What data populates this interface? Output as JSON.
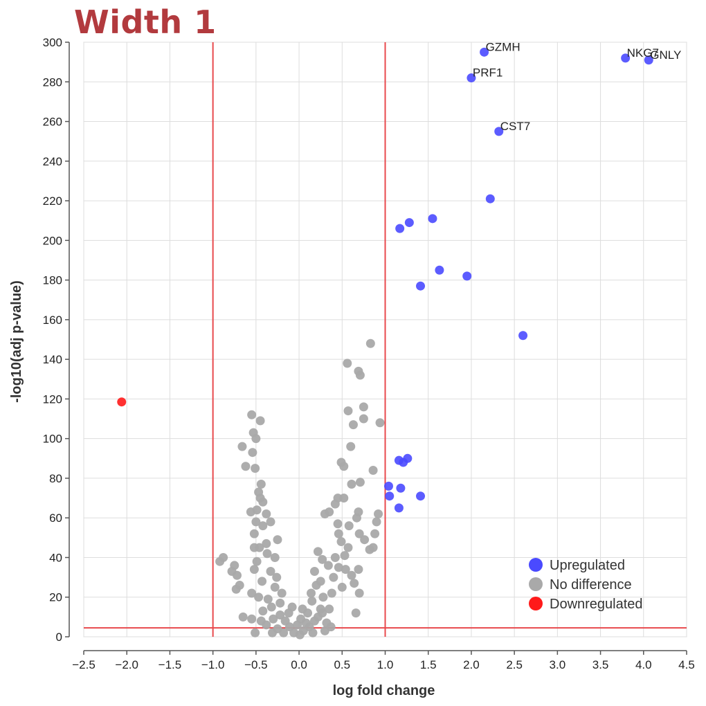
{
  "title": "Width 1",
  "colors": {
    "upregulated": "#4a4aff",
    "no_difference": "#a9a9a9",
    "downregulated": "#ff1a1a",
    "threshold": "#e8484c",
    "grid": "#dddddd",
    "axis": "#555555"
  },
  "chart_data": {
    "type": "scatter",
    "xlabel": "log fold change",
    "ylabel": "-log10(adj p-value)",
    "xlim": [
      -2.5,
      4.5
    ],
    "ylim": [
      0,
      300
    ],
    "x_ticks": [
      -2.5,
      -2.0,
      -1.5,
      -1.0,
      -0.5,
      0.0,
      0.5,
      1.0,
      1.5,
      2.0,
      2.5,
      3.0,
      3.5,
      4.0,
      4.5
    ],
    "x_tick_labels": [
      "−2.5",
      "−2.0",
      "−1.5",
      "−1.0",
      "−0.5",
      "0.0",
      "0.5",
      "1.0",
      "1.5",
      "2.0",
      "2.5",
      "3.0",
      "3.5",
      "4.0",
      "4.5"
    ],
    "y_ticks": [
      0,
      20,
      40,
      60,
      80,
      100,
      120,
      140,
      160,
      180,
      200,
      220,
      240,
      260,
      280,
      300
    ],
    "y_tick_labels": [
      "0",
      "20",
      "40",
      "60",
      "80",
      "100",
      "120",
      "140",
      "160",
      "180",
      "200",
      "220",
      "240",
      "260",
      "280",
      "300"
    ],
    "grid": true,
    "legend_position": "bottom-right",
    "thresholds": {
      "x": [
        -1.0,
        1.0
      ],
      "y": [
        4.5
      ]
    },
    "legend": [
      {
        "label": "Upregulated",
        "category": "upregulated"
      },
      {
        "label": "No difference",
        "category": "no_difference"
      },
      {
        "label": "Downregulated",
        "category": "downregulated"
      }
    ],
    "series": [
      {
        "category": "upregulated",
        "points": [
          {
            "x": 2.15,
            "y": 295,
            "label": "GZMH"
          },
          {
            "x": 3.79,
            "y": 292,
            "label": "NKG7"
          },
          {
            "x": 4.06,
            "y": 291,
            "label": "GNLY"
          },
          {
            "x": 2.0,
            "y": 282,
            "label": "PRF1"
          },
          {
            "x": 2.32,
            "y": 255,
            "label": "CST7"
          },
          {
            "x": 2.22,
            "y": 221
          },
          {
            "x": 1.55,
            "y": 211
          },
          {
            "x": 1.28,
            "y": 209
          },
          {
            "x": 1.17,
            "y": 206
          },
          {
            "x": 1.63,
            "y": 185
          },
          {
            "x": 1.95,
            "y": 182
          },
          {
            "x": 1.41,
            "y": 177
          },
          {
            "x": 2.6,
            "y": 152
          },
          {
            "x": 1.26,
            "y": 90
          },
          {
            "x": 1.16,
            "y": 89
          },
          {
            "x": 1.21,
            "y": 88
          },
          {
            "x": 1.04,
            "y": 76
          },
          {
            "x": 1.18,
            "y": 75
          },
          {
            "x": 1.05,
            "y": 71
          },
          {
            "x": 1.41,
            "y": 71
          },
          {
            "x": 1.16,
            "y": 65
          }
        ]
      },
      {
        "category": "downregulated",
        "points": [
          {
            "x": -2.06,
            "y": 118.5
          }
        ]
      },
      {
        "category": "no_difference",
        "points": [
          {
            "x": 0.83,
            "y": 148
          },
          {
            "x": 0.56,
            "y": 138
          },
          {
            "x": 0.69,
            "y": 134
          },
          {
            "x": 0.71,
            "y": 132
          },
          {
            "x": 0.75,
            "y": 116
          },
          {
            "x": 0.57,
            "y": 114
          },
          {
            "x": 0.75,
            "y": 110
          },
          {
            "x": 0.63,
            "y": 107
          },
          {
            "x": 0.94,
            "y": 108
          },
          {
            "x": 0.6,
            "y": 96
          },
          {
            "x": 0.49,
            "y": 88
          },
          {
            "x": 0.52,
            "y": 86
          },
          {
            "x": 0.86,
            "y": 84
          },
          {
            "x": 0.71,
            "y": 78
          },
          {
            "x": 0.61,
            "y": 77
          },
          {
            "x": 0.52,
            "y": 70
          },
          {
            "x": 0.45,
            "y": 70
          },
          {
            "x": 0.42,
            "y": 67
          },
          {
            "x": 0.35,
            "y": 63
          },
          {
            "x": 0.3,
            "y": 62
          },
          {
            "x": 0.69,
            "y": 63
          },
          {
            "x": 0.67,
            "y": 60
          },
          {
            "x": 0.9,
            "y": 58
          },
          {
            "x": 0.92,
            "y": 62
          },
          {
            "x": 0.45,
            "y": 57
          },
          {
            "x": 0.58,
            "y": 56
          },
          {
            "x": 0.46,
            "y": 52
          },
          {
            "x": 0.7,
            "y": 52
          },
          {
            "x": 0.88,
            "y": 52
          },
          {
            "x": 0.76,
            "y": 49
          },
          {
            "x": 0.49,
            "y": 48
          },
          {
            "x": 0.86,
            "y": 45
          },
          {
            "x": 0.57,
            "y": 45
          },
          {
            "x": 0.82,
            "y": 44
          },
          {
            "x": 0.53,
            "y": 41
          },
          {
            "x": 0.42,
            "y": 40
          },
          {
            "x": 0.22,
            "y": 43
          },
          {
            "x": 0.27,
            "y": 39
          },
          {
            "x": 0.34,
            "y": 36
          },
          {
            "x": 0.46,
            "y": 35
          },
          {
            "x": 0.54,
            "y": 34
          },
          {
            "x": 0.69,
            "y": 34
          },
          {
            "x": 0.61,
            "y": 31
          },
          {
            "x": 0.4,
            "y": 30
          },
          {
            "x": 0.64,
            "y": 27
          },
          {
            "x": 0.5,
            "y": 25
          },
          {
            "x": 0.7,
            "y": 22
          },
          {
            "x": 0.38,
            "y": 22
          },
          {
            "x": 0.28,
            "y": 20
          },
          {
            "x": 0.66,
            "y": 12
          },
          {
            "x": 0.35,
            "y": 14
          },
          {
            "x": 0.27,
            "y": 12
          },
          {
            "x": 0.22,
            "y": 10
          },
          {
            "x": 0.18,
            "y": 8
          },
          {
            "x": 0.12,
            "y": 5
          },
          {
            "x": 0.05,
            "y": 3
          },
          {
            "x": 0.15,
            "y": 18
          },
          {
            "x": 0.2,
            "y": 26
          },
          {
            "x": 0.25,
            "y": 14
          },
          {
            "x": 0.32,
            "y": 7
          },
          {
            "x": 0.37,
            "y": 5
          },
          {
            "x": 0.1,
            "y": 12
          },
          {
            "x": 0.08,
            "y": 7
          },
          {
            "x": 0.02,
            "y": 9
          },
          {
            "x": 0.04,
            "y": 14
          },
          {
            "x": 0.14,
            "y": 22
          },
          {
            "x": 0.25,
            "y": 28
          },
          {
            "x": 0.18,
            "y": 33
          },
          {
            "x": -0.55,
            "y": 112
          },
          {
            "x": -0.45,
            "y": 109
          },
          {
            "x": -0.53,
            "y": 103
          },
          {
            "x": -0.5,
            "y": 100
          },
          {
            "x": -0.66,
            "y": 96
          },
          {
            "x": -0.54,
            "y": 93
          },
          {
            "x": -0.62,
            "y": 86
          },
          {
            "x": -0.51,
            "y": 85
          },
          {
            "x": -0.44,
            "y": 77
          },
          {
            "x": -0.47,
            "y": 73
          },
          {
            "x": -0.45,
            "y": 70
          },
          {
            "x": -0.42,
            "y": 68
          },
          {
            "x": -0.56,
            "y": 63
          },
          {
            "x": -0.49,
            "y": 64
          },
          {
            "x": -0.38,
            "y": 62
          },
          {
            "x": -0.33,
            "y": 58
          },
          {
            "x": -0.5,
            "y": 58
          },
          {
            "x": -0.42,
            "y": 56
          },
          {
            "x": -0.52,
            "y": 52
          },
          {
            "x": -0.38,
            "y": 47
          },
          {
            "x": -0.46,
            "y": 45
          },
          {
            "x": -0.25,
            "y": 49
          },
          {
            "x": -0.52,
            "y": 45
          },
          {
            "x": -0.37,
            "y": 42
          },
          {
            "x": -0.28,
            "y": 40
          },
          {
            "x": -0.49,
            "y": 38
          },
          {
            "x": -0.88,
            "y": 40
          },
          {
            "x": -0.92,
            "y": 38
          },
          {
            "x": -0.75,
            "y": 36
          },
          {
            "x": -0.78,
            "y": 33
          },
          {
            "x": -0.72,
            "y": 31
          },
          {
            "x": -0.52,
            "y": 34
          },
          {
            "x": -0.33,
            "y": 33
          },
          {
            "x": -0.26,
            "y": 30
          },
          {
            "x": -0.43,
            "y": 28
          },
          {
            "x": -0.69,
            "y": 26
          },
          {
            "x": -0.73,
            "y": 24
          },
          {
            "x": -0.55,
            "y": 22
          },
          {
            "x": -0.47,
            "y": 20
          },
          {
            "x": -0.36,
            "y": 19
          },
          {
            "x": -0.22,
            "y": 17
          },
          {
            "x": -0.32,
            "y": 15
          },
          {
            "x": -0.42,
            "y": 13
          },
          {
            "x": -0.65,
            "y": 10
          },
          {
            "x": -0.55,
            "y": 9
          },
          {
            "x": -0.51,
            "y": 2
          },
          {
            "x": -0.38,
            "y": 6
          },
          {
            "x": -0.3,
            "y": 9
          },
          {
            "x": -0.22,
            "y": 11
          },
          {
            "x": -0.16,
            "y": 8
          },
          {
            "x": -0.11,
            "y": 5
          },
          {
            "x": -0.06,
            "y": 2
          },
          {
            "x": -0.25,
            "y": 4
          },
          {
            "x": -0.18,
            "y": 2
          },
          {
            "x": -0.12,
            "y": 12
          },
          {
            "x": -0.2,
            "y": 22
          },
          {
            "x": -0.28,
            "y": 25
          },
          {
            "x": -0.08,
            "y": 15
          },
          {
            "x": -0.02,
            "y": 6
          },
          {
            "x": -0.44,
            "y": 8
          },
          {
            "x": -0.31,
            "y": 2
          },
          {
            "x": 0.01,
            "y": 1
          },
          {
            "x": 0.16,
            "y": 2
          },
          {
            "x": 0.3,
            "y": 3
          }
        ]
      }
    ]
  }
}
